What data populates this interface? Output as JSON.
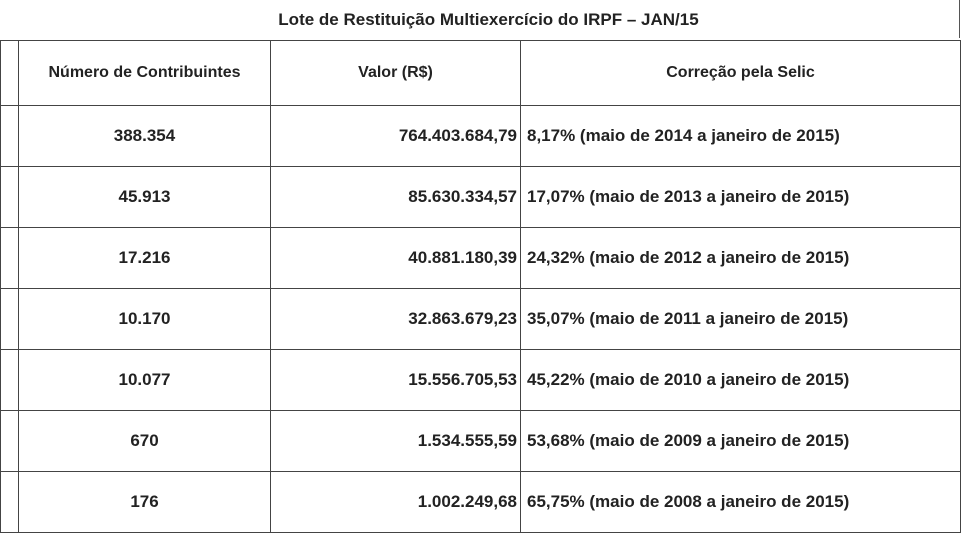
{
  "table": {
    "title": "Lote de Restituição Multiexercício do IRPF – JAN/15",
    "header": [
      "Número de Contribuintes",
      "Valor (R$)",
      "Correção pela Selic"
    ],
    "rows": [
      [
        "388.354",
        "764.403.684,79",
        "8,17% (maio de 2014 a janeiro de 2015)"
      ],
      [
        "45.913",
        "85.630.334,57",
        "17,07% (maio de 2013 a janeiro de 2015)"
      ],
      [
        "17.216",
        "40.881.180,39",
        "24,32% (maio de 2012 a janeiro de 2015)"
      ],
      [
        "10.170",
        "32.863.679,23",
        "35,07% (maio de 2011 a janeiro de 2015)"
      ],
      [
        "10.077",
        "15.556.705,53",
        "45,22% (maio de 2010 a janeiro de 2015)"
      ],
      [
        "670",
        "1.534.555,59",
        "53,68% (maio de 2009 a janeiro de 2015)"
      ],
      [
        "176",
        "1.002.249,68",
        "65,75% (maio de 2008 a janeiro de 2015)"
      ]
    ]
  }
}
